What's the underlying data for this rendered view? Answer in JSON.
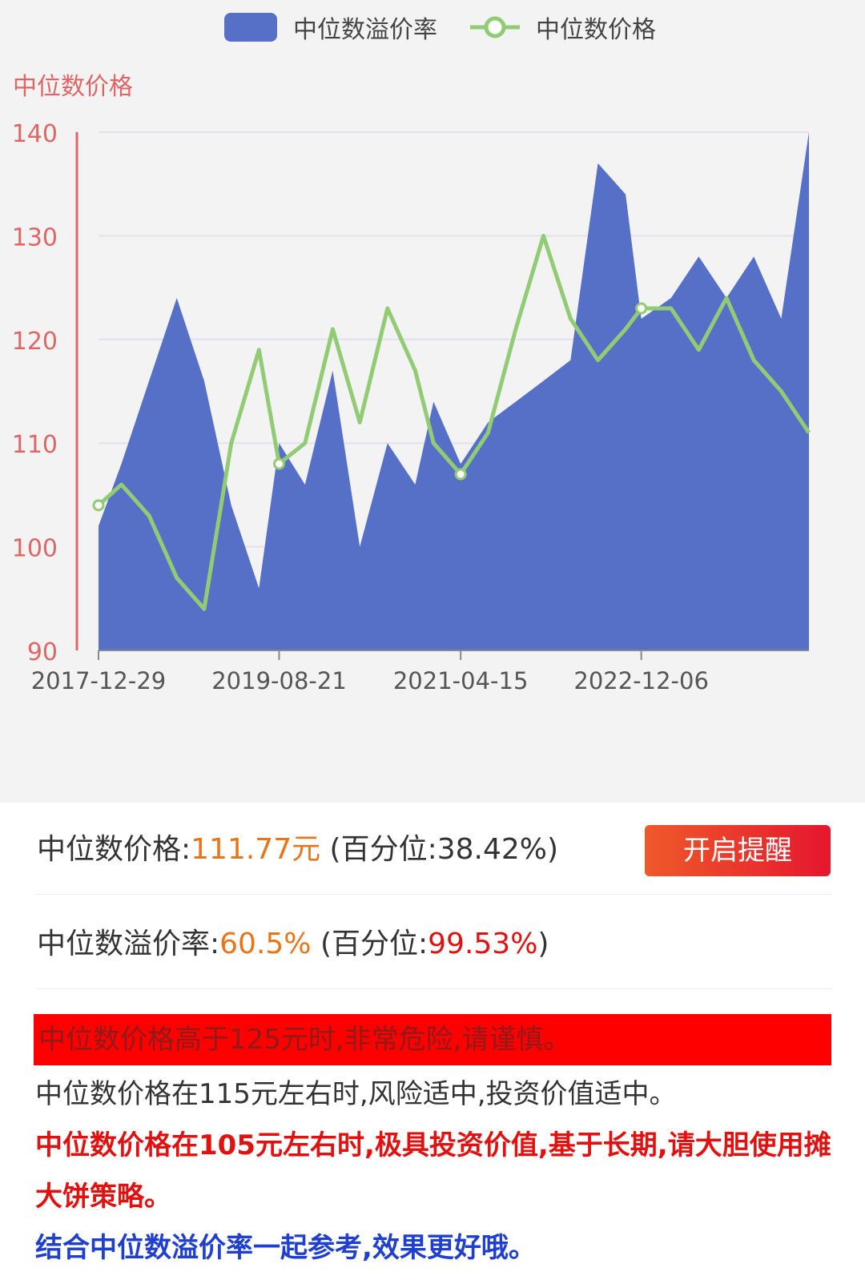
{
  "legend": {
    "premium_label": "中位数溢价率",
    "price_label": "中位数价格"
  },
  "colors": {
    "premium_fill": "#5570c6",
    "price_line": "#91cc75",
    "axis_red": "#e06666",
    "orange": "#e8751a",
    "red": "#e31010",
    "blue": "#1f3fd1"
  },
  "chart_data": {
    "type": "area",
    "ylabel": "中位数价格",
    "yticks": [
      "140",
      "130",
      "120",
      "110",
      "100",
      "90"
    ],
    "ylim": [
      90,
      140
    ],
    "xticks": [
      "2017-12-29",
      "2019-08-21",
      "2021-04-15",
      "2022-12-06"
    ],
    "x": [
      "2017-12-29",
      "2018-03-15",
      "2018-06-15",
      "2018-09-15",
      "2018-12-15",
      "2019-03-15",
      "2019-06-15",
      "2019-08-21",
      "2019-11-15",
      "2020-02-15",
      "2020-05-15",
      "2020-08-15",
      "2020-11-15",
      "2021-01-15",
      "2021-04-15",
      "2021-07-15",
      "2021-10-15",
      "2022-01-15",
      "2022-04-15",
      "2022-07-15",
      "2022-10-15",
      "2022-12-06",
      "2023-03-15",
      "2023-06-15",
      "2023-09-15",
      "2023-12-15",
      "2024-03-15",
      "2024-06-15"
    ],
    "series": [
      {
        "name": "中位数溢价率",
        "type": "area",
        "values": [
          102,
          108,
          116,
          124,
          116,
          104,
          96,
          110,
          106,
          117,
          100,
          110,
          106,
          114,
          108,
          112,
          114,
          116,
          118,
          137,
          134,
          122,
          124,
          128,
          124,
          128,
          122,
          140
        ]
      },
      {
        "name": "中位数价格",
        "type": "line",
        "values": [
          104,
          106,
          103,
          97,
          94,
          110,
          119,
          108,
          110,
          121,
          112,
          123,
          117,
          110,
          107,
          111,
          121,
          130,
          122,
          118,
          121,
          123,
          123,
          119,
          124,
          118,
          115,
          111
        ]
      }
    ],
    "markers": [
      {
        "x": "2017-12-29",
        "y": 104
      },
      {
        "x": "2019-08-21",
        "y": 108
      },
      {
        "x": "2021-04-15",
        "y": 107
      },
      {
        "x": "2022-12-06",
        "y": 123
      }
    ]
  },
  "stats": {
    "price_prefix": "中位数价格:",
    "price_value": "111.77元",
    "price_pct_open": " (百分位:",
    "price_pct_value": "38.42%",
    "price_pct_close": ")",
    "premium_prefix": "中位数溢价率:",
    "premium_value": "60.5%",
    "premium_pct_open": " (百分位:",
    "premium_pct_value": "99.53%",
    "premium_pct_close": ")"
  },
  "remind_button": "开启提醒",
  "tips": {
    "danger": "中位数价格高于125元时,非常危险,请谨慎。",
    "moderate": "中位数价格在115元左右时,风险适中,投资价值适中。",
    "value": "中位数价格在105元左右时,极具投资价值,基于长期,请大胆使用摊大饼策略。",
    "combine": "结合中位数溢价率一起参考,效果更好哦。"
  }
}
